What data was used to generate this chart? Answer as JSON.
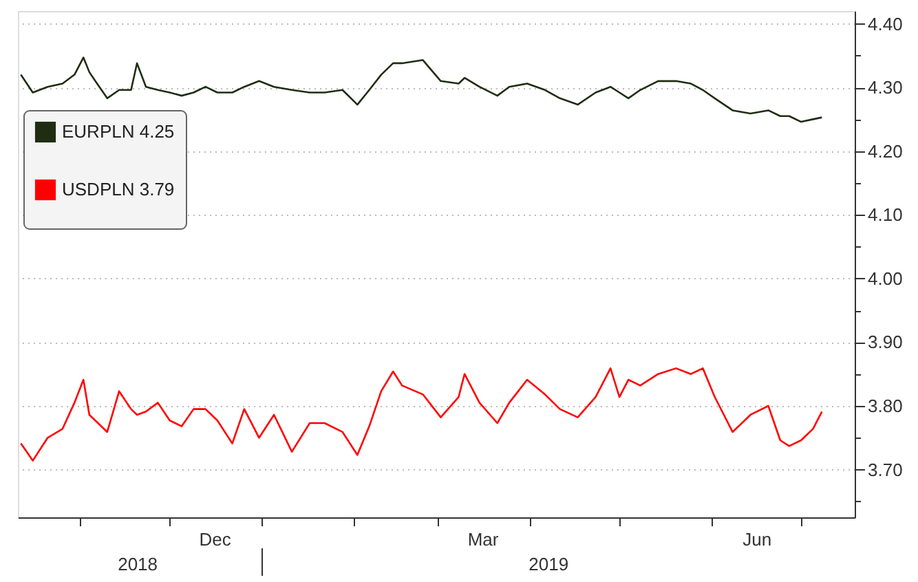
{
  "chart_data": {
    "type": "line",
    "x": [
      "2018-10-12",
      "2018-10-16",
      "2018-10-21",
      "2018-10-26",
      "2018-10-30",
      "2018-11-02",
      "2018-11-04",
      "2018-11-06",
      "2018-11-10",
      "2018-11-14",
      "2018-11-18",
      "2018-11-20",
      "2018-11-23",
      "2018-11-27",
      "2018-12-01",
      "2018-12-05",
      "2018-12-09",
      "2018-12-13",
      "2018-12-17",
      "2018-12-22",
      "2018-12-26",
      "2018-12-31",
      "2019-01-05",
      "2019-01-11",
      "2019-01-17",
      "2019-01-22",
      "2019-01-28",
      "2019-02-02",
      "2019-02-06",
      "2019-02-10",
      "2019-02-14",
      "2019-02-17",
      "2019-02-24",
      "2019-03-02",
      "2019-03-08",
      "2019-03-10",
      "2019-03-15",
      "2019-03-21",
      "2019-03-25",
      "2019-03-31",
      "2019-04-06",
      "2019-04-11",
      "2019-04-17",
      "2019-04-23",
      "2019-04-28",
      "2019-05-01",
      "2019-05-04",
      "2019-05-08",
      "2019-05-14",
      "2019-05-20",
      "2019-05-25",
      "2019-05-29",
      "2019-06-02",
      "2019-06-08",
      "2019-06-14",
      "2019-06-20",
      "2019-06-24",
      "2019-06-27",
      "2019-07-01",
      "2019-07-05",
      "2019-07-08"
    ],
    "series": [
      {
        "name": "EURPLN 4.25",
        "color": "#1f2e12",
        "values": [
          4.32,
          4.292,
          4.301,
          4.306,
          4.32,
          4.347,
          4.324,
          4.31,
          4.283,
          4.296,
          4.296,
          4.338,
          4.301,
          4.296,
          4.292,
          4.287,
          4.292,
          4.301,
          4.292,
          4.292,
          4.301,
          4.31,
          4.301,
          4.296,
          4.292,
          4.292,
          4.296,
          4.273,
          4.296,
          4.32,
          4.338,
          4.338,
          4.343,
          4.31,
          4.306,
          4.315,
          4.301,
          4.287,
          4.301,
          4.306,
          4.296,
          4.283,
          4.273,
          4.292,
          4.301,
          4.292,
          4.283,
          4.296,
          4.31,
          4.31,
          4.306,
          4.296,
          4.283,
          4.264,
          4.259,
          4.264,
          4.255,
          4.255,
          4.246,
          4.25,
          4.253
        ]
      },
      {
        "name": "USDPLN 3.79",
        "color": "#ff0000",
        "values": [
          3.741,
          3.714,
          3.75,
          3.764,
          3.805,
          3.841,
          3.786,
          3.777,
          3.759,
          3.823,
          3.795,
          3.786,
          3.791,
          3.805,
          3.777,
          3.768,
          3.795,
          3.795,
          3.777,
          3.741,
          3.795,
          3.75,
          3.786,
          3.728,
          3.773,
          3.773,
          3.759,
          3.723,
          3.768,
          3.823,
          3.854,
          3.832,
          3.818,
          3.782,
          3.814,
          3.85,
          3.805,
          3.773,
          3.805,
          3.841,
          3.818,
          3.795,
          3.782,
          3.814,
          3.859,
          3.814,
          3.841,
          3.832,
          3.85,
          3.859,
          3.85,
          3.859,
          3.814,
          3.759,
          3.786,
          3.8,
          3.746,
          3.737,
          3.746,
          3.764,
          3.791
        ]
      }
    ],
    "xlim": [
      "2018-10-11",
      "2019-07-19"
    ],
    "xticks": [
      {
        "value": "2018-11-01",
        "label": null
      },
      {
        "value": "2018-12-01",
        "label": null
      },
      {
        "value": "2018-12-16",
        "label": "Dec"
      },
      {
        "value": "2019-01-01",
        "label": null
      },
      {
        "value": "2019-02-01",
        "label": null
      },
      {
        "value": "2019-03-01",
        "label": null
      },
      {
        "value": "2019-03-16",
        "label": "Mar"
      },
      {
        "value": "2019-04-01",
        "label": null
      },
      {
        "value": "2019-05-01",
        "label": null
      },
      {
        "value": "2019-06-01",
        "label": null
      },
      {
        "value": "2019-06-16",
        "label": "Jun"
      },
      {
        "value": "2019-07-01",
        "label": null
      }
    ],
    "x2lim": [
      "2018-10-11",
      "2019-07-19"
    ],
    "x2ticks": [
      {
        "value": "2018-11-20",
        "label": "2018"
      },
      {
        "value": "2019-01-01",
        "label": null
      },
      {
        "value": "2019-04-07",
        "label": "2019"
      }
    ],
    "ylim": [
      3.625,
      4.42
    ],
    "yticks": [
      {
        "value": 3.65,
        "label": null
      },
      {
        "value": 3.7,
        "label": "3.70"
      },
      {
        "value": 3.75,
        "label": null
      },
      {
        "value": 3.8,
        "label": "3.80"
      },
      {
        "value": 3.85,
        "label": null
      },
      {
        "value": 3.9,
        "label": "3.90"
      },
      {
        "value": 3.95,
        "label": null
      },
      {
        "value": 4.0,
        "label": "4.00"
      },
      {
        "value": 4.05,
        "label": null
      },
      {
        "value": 4.1,
        "label": "4.10"
      },
      {
        "value": 4.15,
        "label": null
      },
      {
        "value": 4.2,
        "label": "4.20"
      },
      {
        "value": 4.25,
        "label": null
      },
      {
        "value": 4.3,
        "label": "4.30"
      },
      {
        "value": 4.35,
        "label": null
      },
      {
        "value": 4.4,
        "label": "4.40"
      }
    ],
    "grid": "y",
    "legend": "top left",
    "marker": "none",
    "line_style": "solid"
  }
}
